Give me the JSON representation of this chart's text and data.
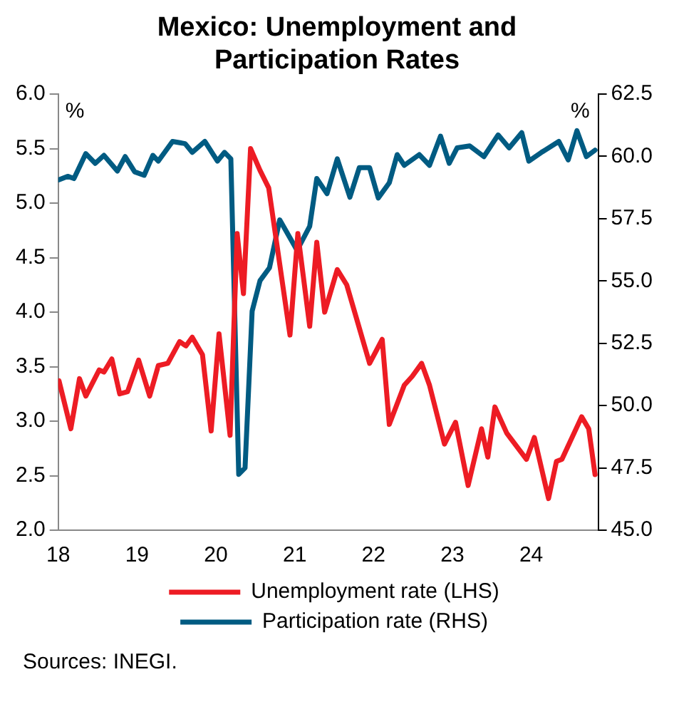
{
  "chart_data": {
    "type": "line",
    "title": "Mexico: Unemployment and Participation Rates",
    "ylabel": "%",
    "y2label": "%",
    "annotations": [
      "Sources: INEGI."
    ],
    "xlim": [
      18,
      24.85
    ],
    "xticks": [
      18,
      19,
      20,
      21,
      22,
      23,
      24
    ],
    "ylim": [
      2,
      6
    ],
    "yticks": [
      {
        "value": 2,
        "label": "2.0"
      },
      2.5,
      {
        "value": 3,
        "label": "3.0"
      },
      3.5,
      {
        "value": 4,
        "label": "4.0"
      },
      4.5,
      {
        "value": 5,
        "label": "5.0"
      },
      5.5,
      {
        "value": 6,
        "label": "6.0"
      }
    ],
    "y2lim": [
      45,
      62.5
    ],
    "y2ticks": [
      {
        "value": 45,
        "label": "45.0"
      },
      47.5,
      {
        "value": 50,
        "label": "50.0"
      },
      52.5,
      {
        "value": 55,
        "label": "55.0"
      },
      57.5,
      {
        "value": 60,
        "label": "60.0"
      },
      62.5
    ],
    "grid": false,
    "legend": "bottom",
    "marker": "none",
    "line_style": "solid",
    "series": [
      {
        "name": "Unemployment rate (LHS)",
        "color": "#ed1c24",
        "x": [
          18.01,
          18.16,
          18.27,
          18.35,
          18.52,
          18.58,
          18.68,
          18.78,
          18.88,
          19.02,
          19.16,
          19.27,
          19.39,
          19.54,
          19.62,
          19.7,
          19.83,
          19.94,
          20.04,
          20.18,
          20.27,
          20.35,
          20.44,
          20.56,
          20.67,
          20.94,
          21.04,
          21.19,
          21.28,
          21.38,
          21.54,
          21.66,
          21.95,
          22.11,
          22.2,
          22.39,
          22.49,
          22.61,
          22.71,
          22.9,
          23.04,
          23.2,
          23.37,
          23.45,
          23.54,
          23.69,
          23.94,
          24.04,
          24.22,
          24.32,
          24.39,
          24.64,
          24.73,
          24.81
        ],
        "values": [
          3.37,
          2.93,
          3.39,
          3.23,
          3.47,
          3.45,
          3.57,
          3.25,
          3.27,
          3.56,
          3.23,
          3.51,
          3.53,
          3.73,
          3.69,
          3.77,
          3.61,
          2.91,
          3.8,
          2.87,
          4.72,
          4.17,
          5.5,
          5.3,
          5.14,
          3.79,
          4.72,
          3.87,
          4.64,
          4,
          4.39,
          4.25,
          3.53,
          3.75,
          2.97,
          3.33,
          3.41,
          3.53,
          3.33,
          2.79,
          2.99,
          2.41,
          2.93,
          2.67,
          3.13,
          2.89,
          2.65,
          2.85,
          2.29,
          2.63,
          2.65,
          3.04,
          2.93,
          2.51
        ]
      },
      {
        "name": "Participation rate (RHS)",
        "color": "#005b82",
        "axis": "y2",
        "x": [
          18.01,
          18.12,
          18.2,
          18.35,
          18.47,
          18.58,
          18.75,
          18.85,
          18.97,
          19.09,
          19.2,
          19.27,
          19.45,
          19.61,
          19.7,
          19.86,
          20.02,
          20.11,
          20.19,
          20.29,
          20.37,
          20.46,
          20.56,
          20.68,
          20.81,
          21.03,
          21.19,
          21.28,
          21.41,
          21.54,
          21.7,
          21.82,
          21.95,
          22.06,
          22.2,
          22.3,
          22.39,
          22.58,
          22.71,
          22.85,
          22.96,
          23.06,
          23.22,
          23.4,
          23.58,
          23.72,
          23.88,
          23.97,
          24.13,
          24.35,
          24.47,
          24.58,
          24.7,
          24.81
        ],
        "values": [
          59.06,
          59.2,
          59.11,
          60.11,
          59.72,
          60.04,
          59.41,
          59.99,
          59.38,
          59.24,
          60.04,
          59.81,
          60.6,
          60.51,
          60.16,
          60.6,
          59.81,
          60.16,
          59.9,
          47.24,
          47.5,
          53.79,
          55.01,
          55.53,
          57.45,
          56.23,
          57.19,
          59.11,
          58.5,
          59.9,
          58.36,
          59.55,
          59.55,
          58.33,
          58.94,
          60.07,
          59.64,
          60.07,
          59.64,
          60.81,
          59.72,
          60.34,
          60.42,
          59.99,
          60.86,
          60.34,
          60.95,
          59.81,
          60.16,
          60.6,
          59.86,
          61.03,
          59.99,
          60.25
        ]
      }
    ]
  }
}
